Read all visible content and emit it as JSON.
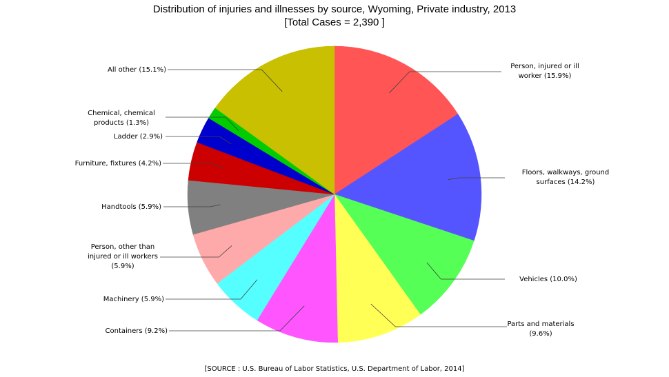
{
  "chart_data": {
    "type": "pie",
    "title": "Distribution of injuries and illnesses by source, Wyoming, Private industry, 2013",
    "subtitle": "[Total Cases = 2,390 ]",
    "source": "[SOURCE : U.S. Bureau of Labor Statistics, U.S. Department of Labor, 2014]",
    "start_angle": "12 o'clock",
    "direction": "clockwise",
    "slices": [
      {
        "label": [
          "Person, injured or ill",
          "worker (15.9%)"
        ],
        "value": 15.9,
        "color": "#ff5555"
      },
      {
        "label": [
          "Floors, walkways, ground",
          "surfaces (14.2%)"
        ],
        "value": 14.2,
        "color": "#5555ff"
      },
      {
        "label": [
          "Vehicles (10.0%)"
        ],
        "value": 10.0,
        "color": "#55ff55"
      },
      {
        "label": [
          "Parts and materials",
          "(9.6%)"
        ],
        "value": 9.6,
        "color": "#ffff55"
      },
      {
        "label": [
          "Containers (9.2%)"
        ],
        "value": 9.2,
        "color": "#ff55ff"
      },
      {
        "label": [
          "Machinery (5.9%)"
        ],
        "value": 5.9,
        "color": "#55ffff"
      },
      {
        "label": [
          "Person, other than",
          "injured or ill workers",
          "(5.9%)"
        ],
        "value": 5.9,
        "color": "#ffaaaa"
      },
      {
        "label": [
          "Handtools (5.9%)"
        ],
        "value": 5.9,
        "color": "#808080"
      },
      {
        "label": [
          "Furniture, fixtures (4.2%)"
        ],
        "value": 4.2,
        "color": "#cc0000"
      },
      {
        "label": [
          "Ladder (2.9%)"
        ],
        "value": 2.9,
        "color": "#0000cc"
      },
      {
        "label": [
          "Chemical, chemical",
          "products (1.3%)"
        ],
        "value": 1.3,
        "color": "#00cc00"
      },
      {
        "label": [
          "All other (15.1%)"
        ],
        "value": 15.1,
        "color": "#c8c000"
      }
    ]
  }
}
